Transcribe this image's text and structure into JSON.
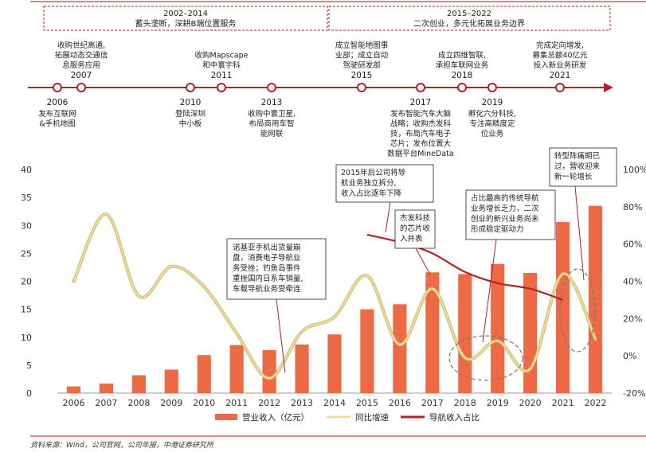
{
  "timeline": {
    "periods": [
      {
        "years": "2002–2014",
        "desc": "蓄头垄断，深耕B端位置服务"
      },
      {
        "years": "2015–2022",
        "desc": "二次创业，多元化拓展业务边界"
      }
    ],
    "events": [
      {
        "year": "2007",
        "pos": "above",
        "lines": [
          "收购世纪高通,",
          "拓展动态交通信",
          "息服务应用"
        ]
      },
      {
        "year": "2011",
        "pos": "above",
        "lines": [
          "收购Mapscape",
          "和中寰宇科"
        ]
      },
      {
        "year": "2015",
        "pos": "above",
        "lines": [
          "成立智能地图事",
          "业部；成立自动",
          "驾驶研发部"
        ]
      },
      {
        "year": "2018",
        "pos": "above",
        "lines": [
          "成立四维智联,",
          "承担车联网业务"
        ]
      },
      {
        "year": "2021",
        "pos": "above",
        "lines": [
          "完成定向增发,",
          "募集总额40亿元",
          "投入新业务研发"
        ]
      },
      {
        "year": "2006",
        "pos": "below",
        "lines": [
          "发布互联网",
          "&手机地图"
        ]
      },
      {
        "year": "2010",
        "pos": "below",
        "lines": [
          "登陆深圳",
          "中小板"
        ]
      },
      {
        "year": "2013",
        "pos": "below",
        "lines": [
          "收购中寰卫星,",
          "布局商用车智",
          "能网联"
        ]
      },
      {
        "year": "2017",
        "pos": "below",
        "lines": [
          "发布智能汽车大脑",
          "战略；收购杰发科",
          "技，布局汽车电子",
          "芯片；发布位置大",
          "数据平台MineData"
        ]
      },
      {
        "year": "2019",
        "pos": "below",
        "lines": [
          "孵化六分科技,",
          "专注高精度定",
          "位业务"
        ]
      }
    ]
  },
  "chart_data": {
    "type": "bar",
    "categories": [
      "2006",
      "2007",
      "2008",
      "2009",
      "2010",
      "2011",
      "2012",
      "2013",
      "2014",
      "2015",
      "2016",
      "2017",
      "2018",
      "2019",
      "2020",
      "2021",
      "2022"
    ],
    "ylim": [
      0,
      40
    ],
    "y2lim": [
      -20,
      100
    ],
    "yticks": [
      "0",
      "5",
      "10",
      "15",
      "20",
      "25",
      "30",
      "35",
      "40"
    ],
    "y2ticks": [
      "-20%",
      "0%",
      "20%",
      "40%",
      "60%",
      "80%",
      "100%"
    ],
    "series": [
      {
        "name": "营业收入（亿元）",
        "type": "bar",
        "axis": "left",
        "color": "#ec6b45",
        "values": [
          1.2,
          1.7,
          3.2,
          4.2,
          6.8,
          8.6,
          7.7,
          8.7,
          10.5,
          15.0,
          15.9,
          21.6,
          21.3,
          23.1,
          21.5,
          30.6,
          33.5
        ]
      },
      {
        "name": "同比增速",
        "type": "line",
        "axis": "right",
        "color": "#efdc9a",
        "values": [
          40,
          76,
          32,
          48,
          37,
          12,
          -12,
          13,
          21,
          43,
          6,
          36,
          -1,
          8,
          -7,
          44,
          9
        ]
      },
      {
        "name": "导航收入占比",
        "type": "line",
        "axis": "right",
        "color": "#b3202a",
        "values": [
          null,
          null,
          null,
          null,
          null,
          null,
          null,
          null,
          null,
          65,
          61,
          55,
          45,
          39,
          36,
          30,
          null
        ]
      }
    ],
    "annotations": [
      "诺基亚手机出货量崩盘，消费电子导航业务受挫；钓鱼岛事件重挫国内日系车销量，车载导航业务受牵连",
      "2015年后公司将导航业务独立拆分，收入占比逐年下降",
      "杰发科技的芯片收入并表",
      "占比最高的传统导航业务增长乏力，二次创业的新兴业务尚未形成稳定驱动力",
      "转型阵痛期已过，营收迎来新一轮增长"
    ]
  },
  "source": "资料来源：Wind，公司官网，公司年报，中港证券研究所"
}
